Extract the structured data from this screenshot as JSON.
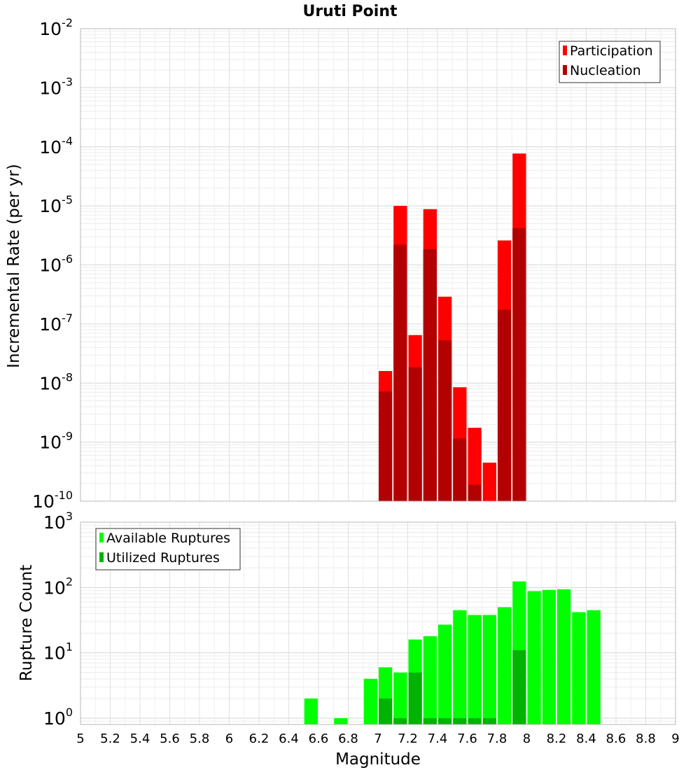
{
  "chart_data": [
    {
      "type": "bar",
      "title": "Uruti Point",
      "xlabel": "",
      "ylabel": "Incremental Rate (per yr)",
      "yscale": "log",
      "ylim": [
        1e-10,
        0.01
      ],
      "xlim": [
        5,
        9
      ],
      "grid": true,
      "legend_position": "top-right",
      "bar_width": 0.1,
      "y_tick_labels": [
        {
          "base": "10",
          "exp": "-10"
        },
        {
          "base": "10",
          "exp": "-9"
        },
        {
          "base": "10",
          "exp": "-8"
        },
        {
          "base": "10",
          "exp": "-7"
        },
        {
          "base": "10",
          "exp": "-6"
        },
        {
          "base": "10",
          "exp": "-5"
        },
        {
          "base": "10",
          "exp": "-4"
        },
        {
          "base": "10",
          "exp": "-3"
        },
        {
          "base": "10",
          "exp": "-2"
        }
      ],
      "series": [
        {
          "name": "Participation",
          "color": "#ff0000",
          "x": [
            7.05,
            7.15,
            7.25,
            7.35,
            7.45,
            7.55,
            7.65,
            7.75,
            7.85,
            7.95
          ],
          "values": [
            1.6e-08,
            1e-05,
            6.5e-08,
            8.8e-06,
            2.9e-07,
            8.5e-09,
            1.75e-09,
            4.5e-10,
            2.6e-06,
            7.7e-05
          ]
        },
        {
          "name": "Nucleation",
          "color": "#b30000",
          "x": [
            7.05,
            7.15,
            7.25,
            7.35,
            7.45,
            7.55,
            7.65,
            7.95,
            7.85
          ],
          "values": [
            7.2e-09,
            2.2e-06,
            1.85e-08,
            1.85e-06,
            5.3e-08,
            1.15e-09,
            1.9e-10,
            4.2e-06,
            1.75e-07
          ]
        }
      ]
    },
    {
      "type": "bar",
      "title": "",
      "xlabel": "Magnitude",
      "ylabel": "Rupture Count",
      "yscale": "log",
      "ylim": [
        0.8,
        1000
      ],
      "xlim": [
        5,
        9
      ],
      "grid": true,
      "legend_position": "top-left",
      "bar_width": 0.1,
      "x_tick_labels": [
        "5",
        "5.2",
        "5.4",
        "5.6",
        "5.8",
        "6",
        "6.2",
        "6.4",
        "6.6",
        "6.8",
        "7",
        "7.2",
        "7.4",
        "7.6",
        "7.8",
        "8",
        "8.2",
        "8.4",
        "8.6",
        "8.8",
        "9"
      ],
      "y_tick_labels": [
        {
          "base": "10",
          "exp": "0"
        },
        {
          "base": "10",
          "exp": "1"
        },
        {
          "base": "10",
          "exp": "2"
        },
        {
          "base": "10",
          "exp": "3"
        }
      ],
      "series": [
        {
          "name": "Available Ruptures",
          "color": "#00ff00",
          "x": [
            6.55,
            6.75,
            6.95,
            7.05,
            7.15,
            7.25,
            7.35,
            7.45,
            7.55,
            7.65,
            7.75,
            7.85,
            7.95,
            8.05,
            8.15,
            8.25,
            8.35,
            8.45
          ],
          "values": [
            2,
            1,
            4,
            6,
            5,
            16,
            18,
            27,
            45,
            38,
            38,
            50,
            124,
            88,
            92,
            94,
            42,
            45
          ]
        },
        {
          "name": "Utilized Ruptures",
          "color": "#00b300",
          "x": [
            7.05,
            7.15,
            7.25,
            7.35,
            7.45,
            7.55,
            7.65,
            7.75,
            7.95
          ],
          "values": [
            2,
            1,
            5,
            1,
            1,
            1,
            1,
            1,
            11
          ]
        }
      ]
    }
  ]
}
